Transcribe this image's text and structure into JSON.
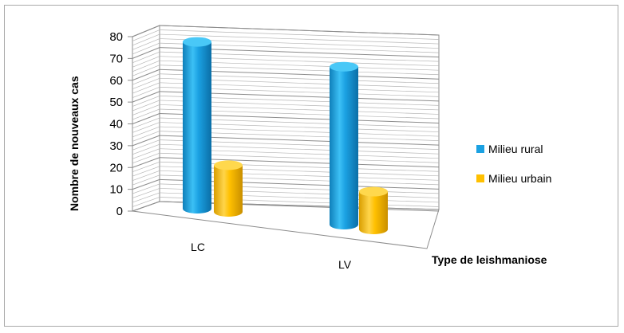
{
  "chart_data": {
    "type": "bar",
    "style": "3d-cylinder",
    "categories": [
      "LC",
      "LV"
    ],
    "series": [
      {
        "name": "Milieu rural",
        "color": "#1BA1E2",
        "values": [
          75,
          71
        ]
      },
      {
        "name": "Milieu urbain",
        "color": "#FFC000",
        "values": [
          21,
          17
        ]
      }
    ],
    "xlabel": "Type de leishmaniose",
    "ylabel": "Nombre de nouveaux cas",
    "ylim": [
      0,
      80
    ],
    "yticks": [
      0,
      10,
      20,
      30,
      40,
      50,
      60,
      70,
      80
    ],
    "grid": true,
    "legend_position": "right"
  }
}
